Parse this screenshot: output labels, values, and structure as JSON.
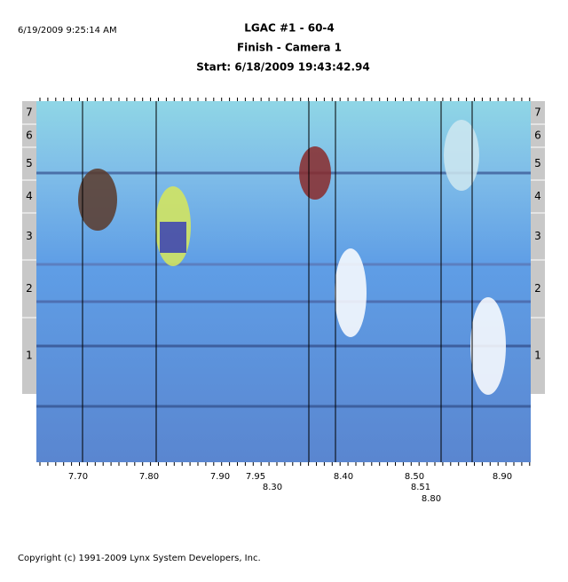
{
  "header": {
    "timestamp": "6/19/2009 9:25:14 AM",
    "title": "LGAC #1 - 60-4",
    "subtitle": "Finish - Camera 1",
    "start": "Start: 6/18/2009 19:43:42.94"
  },
  "lanes": [
    "7",
    "6",
    "5",
    "4",
    "3",
    "2",
    "1"
  ],
  "time_labels": [
    "7.70",
    "7.80",
    "7.90",
    "7.95",
    "8.30",
    "8.40",
    "8.50",
    "8.51",
    "8.80",
    "8.90"
  ],
  "footer": {
    "copyright": "Copyright (c) 1991-2009 Lynx System Developers, Inc."
  }
}
